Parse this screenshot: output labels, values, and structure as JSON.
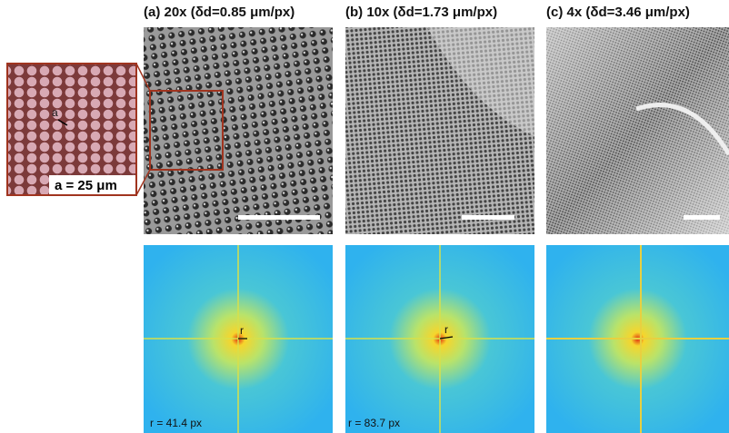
{
  "panels": [
    {
      "title": "(a) 20x (δd=0.85 μm/px)",
      "vector_label": "r",
      "fft_label": "r = 41.4 px"
    },
    {
      "title": "(b) 10x (δd=1.73 μm/px)",
      "vector_label": "r",
      "fft_label": "r = 83.7 px"
    },
    {
      "title": "(c) 4x (δd=3.46 μm/px)"
    }
  ],
  "inset": {
    "lattice_label": "a",
    "spacing_label": "a = 25 μm"
  }
}
